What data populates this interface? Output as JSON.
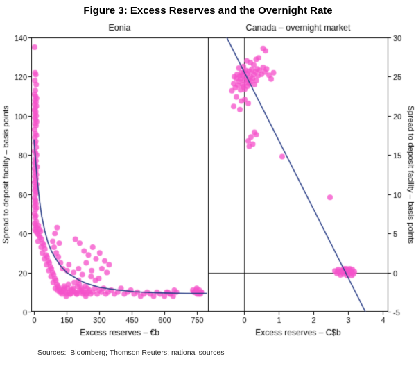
{
  "figure": {
    "title": "Figure 3: Excess Reserves and the Overnight Rate",
    "sources": "Sources:  Bloomberg; Thomson Reuters; national sources"
  },
  "colors": {
    "dot": "#f553cb",
    "line": "#2b3f87",
    "frame": "#000000",
    "text": "#000000"
  },
  "chart_data": [
    {
      "type": "scatter",
      "title": "Eonia",
      "xlabel": "Excess reserves – €b",
      "ylabel": "Spread to deposit facility – basis points",
      "ylabel_side": "left",
      "xlim": [
        -13,
        800
      ],
      "ylim": [
        0,
        140
      ],
      "xticks": [
        0,
        150,
        300,
        450,
        600,
        750
      ],
      "yticks": [
        0,
        20,
        40,
        60,
        80,
        100,
        120,
        140
      ],
      "points": [
        [
          3,
          135
        ],
        [
          5,
          122
        ],
        [
          8,
          121
        ],
        [
          4,
          118
        ],
        [
          10,
          116
        ],
        [
          6,
          113
        ],
        [
          3,
          111
        ],
        [
          7,
          110
        ],
        [
          12,
          109
        ],
        [
          5,
          108
        ],
        [
          9,
          107
        ],
        [
          4,
          106
        ],
        [
          11,
          105
        ],
        [
          6,
          104
        ],
        [
          3,
          103
        ],
        [
          8,
          102
        ],
        [
          5,
          101
        ],
        [
          10,
          100
        ],
        [
          4,
          99
        ],
        [
          7,
          98
        ],
        [
          12,
          97
        ],
        [
          5,
          96
        ],
        [
          9,
          95
        ],
        [
          3,
          93
        ],
        [
          6,
          91
        ],
        [
          11,
          90
        ],
        [
          4,
          89
        ],
        [
          8,
          87
        ],
        [
          5,
          86
        ],
        [
          10,
          84
        ],
        [
          3,
          82
        ],
        [
          7,
          81
        ],
        [
          12,
          80
        ],
        [
          5,
          78
        ],
        [
          9,
          77
        ],
        [
          4,
          76
        ],
        [
          6,
          75
        ],
        [
          14,
          74
        ],
        [
          3,
          73
        ],
        [
          8,
          72
        ],
        [
          5,
          71
        ],
        [
          11,
          70
        ],
        [
          4,
          69
        ],
        [
          9,
          68
        ],
        [
          6,
          67
        ],
        [
          3,
          66
        ],
        [
          12,
          65
        ],
        [
          5,
          64
        ],
        [
          8,
          63
        ],
        [
          4,
          62
        ],
        [
          10,
          61
        ],
        [
          6,
          60
        ],
        [
          3,
          58
        ],
        [
          7,
          57
        ],
        [
          5,
          56
        ],
        [
          9,
          55
        ],
        [
          4,
          54
        ],
        [
          11,
          53
        ],
        [
          6,
          52
        ],
        [
          3,
          50
        ],
        [
          8,
          49
        ],
        [
          5,
          48
        ],
        [
          10,
          46
        ],
        [
          4,
          45
        ],
        [
          7,
          44
        ],
        [
          12,
          43
        ],
        [
          5,
          42
        ],
        [
          9,
          41
        ],
        [
          15,
          40
        ],
        [
          20,
          44
        ],
        [
          25,
          42
        ],
        [
          30,
          41
        ],
        [
          22,
          39
        ],
        [
          28,
          38
        ],
        [
          35,
          37
        ],
        [
          18,
          36
        ],
        [
          40,
          35
        ],
        [
          45,
          34
        ],
        [
          33,
          33
        ],
        [
          50,
          32
        ],
        [
          38,
          30
        ],
        [
          55,
          29
        ],
        [
          60,
          28
        ],
        [
          48,
          27
        ],
        [
          65,
          26
        ],
        [
          70,
          25
        ],
        [
          58,
          24
        ],
        [
          75,
          23
        ],
        [
          80,
          22
        ],
        [
          68,
          21
        ],
        [
          85,
          20
        ],
        [
          90,
          19
        ],
        [
          78,
          18
        ],
        [
          95,
          17
        ],
        [
          100,
          16
        ],
        [
          88,
          15
        ],
        [
          105,
          14
        ],
        [
          110,
          13
        ],
        [
          98,
          12
        ],
        [
          115,
          12
        ],
        [
          120,
          11
        ],
        [
          108,
          11
        ],
        [
          125,
          10
        ],
        [
          130,
          10
        ],
        [
          118,
          10
        ],
        [
          135,
          11
        ],
        [
          140,
          12
        ],
        [
          128,
          9
        ],
        [
          145,
          10
        ],
        [
          150,
          9
        ],
        [
          138,
          13
        ],
        [
          155,
          12
        ],
        [
          160,
          10
        ],
        [
          148,
          8
        ],
        [
          165,
          9
        ],
        [
          170,
          11
        ],
        [
          158,
          14
        ],
        [
          175,
          10
        ],
        [
          180,
          12
        ],
        [
          168,
          9
        ],
        [
          185,
          15
        ],
        [
          190,
          10
        ],
        [
          178,
          11
        ],
        [
          195,
          9
        ],
        [
          200,
          13
        ],
        [
          188,
          10
        ],
        [
          205,
          16
        ],
        [
          210,
          11
        ],
        [
          198,
          9
        ],
        [
          215,
          10
        ],
        [
          220,
          12
        ],
        [
          208,
          14
        ],
        [
          225,
          9
        ],
        [
          230,
          10
        ],
        [
          218,
          11
        ],
        [
          235,
          13
        ],
        [
          240,
          9
        ],
        [
          228,
          10
        ],
        [
          245,
          12
        ],
        [
          250,
          10
        ],
        [
          238,
          8
        ],
        [
          255,
          11
        ],
        [
          260,
          9
        ],
        [
          270,
          10
        ],
        [
          280,
          12
        ],
        [
          290,
          9
        ],
        [
          300,
          11
        ],
        [
          310,
          10
        ],
        [
          320,
          12
        ],
        [
          330,
          9
        ],
        [
          340,
          10
        ],
        [
          190,
          37
        ],
        [
          210,
          35
        ],
        [
          230,
          31
        ],
        [
          250,
          29
        ],
        [
          270,
          33
        ],
        [
          285,
          27
        ],
        [
          302,
          30
        ],
        [
          160,
          24
        ],
        [
          205,
          22
        ],
        [
          240,
          25
        ],
        [
          265,
          21
        ],
        [
          312,
          22
        ],
        [
          325,
          26
        ],
        [
          335,
          20
        ],
        [
          345,
          24
        ],
        [
          298,
          17
        ],
        [
          282,
          16
        ],
        [
          262,
          18
        ],
        [
          222,
          19
        ],
        [
          182,
          20
        ],
        [
          152,
          21
        ],
        [
          132,
          22
        ],
        [
          122,
          25
        ],
        [
          112,
          28
        ],
        [
          102,
          30
        ],
        [
          92,
          33
        ],
        [
          86,
          36
        ],
        [
          96,
          40
        ],
        [
          106,
          43
        ],
        [
          116,
          35
        ],
        [
          355,
          11
        ],
        [
          370,
          9
        ],
        [
          385,
          10
        ],
        [
          400,
          12
        ],
        [
          415,
          9
        ],
        [
          430,
          10
        ],
        [
          445,
          11
        ],
        [
          460,
          9
        ],
        [
          475,
          10
        ],
        [
          490,
          8
        ],
        [
          505,
          9
        ],
        [
          520,
          10
        ],
        [
          535,
          9
        ],
        [
          550,
          8
        ],
        [
          565,
          10
        ],
        [
          580,
          9
        ],
        [
          600,
          8
        ],
        [
          615,
          10
        ],
        [
          630,
          9
        ],
        [
          645,
          11
        ],
        [
          655,
          10
        ],
        [
          640,
          8
        ],
        [
          625,
          9
        ],
        [
          610,
          10
        ],
        [
          730,
          11
        ],
        [
          735,
          10
        ],
        [
          740,
          10
        ],
        [
          745,
          11
        ],
        [
          748,
          12
        ],
        [
          750,
          9
        ],
        [
          755,
          10
        ],
        [
          758,
          9
        ],
        [
          760,
          11
        ],
        [
          765,
          9
        ],
        [
          768,
          10
        ],
        [
          770,
          10
        ]
      ],
      "trend": [
        [
          0,
          88
        ],
        [
          8,
          76
        ],
        [
          16,
          66
        ],
        [
          25,
          57
        ],
        [
          35,
          49
        ],
        [
          50,
          41
        ],
        [
          65,
          35
        ],
        [
          80,
          31
        ],
        [
          100,
          27
        ],
        [
          125,
          23
        ],
        [
          150,
          20
        ],
        [
          180,
          18
        ],
        [
          210,
          16
        ],
        [
          240,
          14.5
        ],
        [
          270,
          13.5
        ],
        [
          300,
          12.5
        ],
        [
          340,
          11.8
        ],
        [
          380,
          11.2
        ],
        [
          420,
          10.7
        ],
        [
          460,
          10.3
        ],
        [
          500,
          10
        ],
        [
          550,
          9.8
        ],
        [
          600,
          9.6
        ],
        [
          650,
          9.5
        ],
        [
          700,
          9.4
        ],
        [
          750,
          9.4
        ],
        [
          795,
          9.4
        ]
      ]
    },
    {
      "type": "scatter",
      "title": "Canada – overnight market",
      "xlabel": "Excess reserves – C$b",
      "ylabel": "Spread to deposit facility – basis points",
      "ylabel_side": "right",
      "xlim": [
        -1.04,
        4.16
      ],
      "ylim": [
        -5,
        30
      ],
      "xticks": [
        0,
        1,
        2,
        3,
        4
      ],
      "yticks": [
        -5,
        0,
        5,
        10,
        15,
        20,
        25,
        30
      ],
      "reflines": {
        "x": 0,
        "y": 0
      },
      "points": [
        [
          -0.35,
          23.2
        ],
        [
          -0.3,
          24.1
        ],
        [
          -0.28,
          25.0
        ],
        [
          -0.25,
          23.6
        ],
        [
          -0.22,
          24.8
        ],
        [
          -0.2,
          25.3
        ],
        [
          -0.18,
          23.9
        ],
        [
          -0.15,
          24.4
        ],
        [
          -0.12,
          25.1
        ],
        [
          -0.1,
          23.3
        ],
        [
          -0.1,
          24.7
        ],
        [
          -0.08,
          25.5
        ],
        [
          -0.05,
          24.0
        ],
        [
          -0.05,
          25.2
        ],
        [
          -0.02,
          23.7
        ],
        [
          0,
          24.5
        ],
        [
          0,
          25.6
        ],
        [
          0.02,
          23.4
        ],
        [
          0.05,
          24.9
        ],
        [
          0.05,
          25.8
        ],
        [
          0.08,
          24.2
        ],
        [
          0.1,
          25.4
        ],
        [
          0.1,
          23.8
        ],
        [
          0.12,
          24.6
        ],
        [
          0.15,
          25.7
        ],
        [
          0.15,
          24.1
        ],
        [
          0.18,
          25.0
        ],
        [
          0.2,
          24.4
        ],
        [
          0.22,
          25.9
        ],
        [
          0.25,
          24.8
        ],
        [
          0.28,
          25.3
        ],
        [
          0.3,
          24.0
        ],
        [
          0.32,
          25.6
        ],
        [
          0.35,
          24.5
        ],
        [
          0.38,
          26.0
        ],
        [
          0.4,
          25.1
        ],
        [
          0.45,
          25.8
        ],
        [
          0.5,
          25.3
        ],
        [
          0.55,
          26.2
        ],
        [
          0.6,
          25.6
        ],
        [
          0.65,
          26.0
        ],
        [
          0.72,
          25.2
        ],
        [
          0.78,
          24.7
        ],
        [
          0.85,
          25.5
        ],
        [
          0.55,
          28.6
        ],
        [
          0.62,
          28.3
        ],
        [
          0.35,
          27.2
        ],
        [
          0.18,
          26.8
        ],
        [
          -0.02,
          26.3
        ],
        [
          0.08,
          27.0
        ],
        [
          -0.15,
          26.1
        ],
        [
          0.28,
          26.5
        ],
        [
          0.42,
          27.4
        ],
        [
          -0.22,
          22.4
        ],
        [
          -0.08,
          21.9
        ],
        [
          0.02,
          22.1
        ],
        [
          0.12,
          21.6
        ],
        [
          -0.3,
          21.2
        ],
        [
          -0.12,
          20.8
        ],
        [
          0.3,
          17.9
        ],
        [
          0.2,
          17.3
        ],
        [
          0.12,
          16.8
        ],
        [
          0.25,
          16.4
        ],
        [
          0.35,
          17.6
        ],
        [
          0.15,
          16.1
        ],
        [
          1.1,
          14.8
        ],
        [
          2.48,
          9.6
        ],
        [
          2.62,
          0.2
        ],
        [
          2.68,
          -0.1
        ],
        [
          2.72,
          0.4
        ],
        [
          2.75,
          0.0
        ],
        [
          2.78,
          -0.3
        ],
        [
          2.82,
          0.3
        ],
        [
          2.85,
          0.1
        ],
        [
          2.88,
          -0.2
        ],
        [
          2.9,
          0.4
        ],
        [
          2.92,
          0.0
        ],
        [
          2.95,
          0.2
        ],
        [
          2.98,
          -0.4
        ],
        [
          3.0,
          0.1
        ],
        [
          3.02,
          0.3
        ],
        [
          3.05,
          -0.1
        ],
        [
          3.08,
          0.2
        ],
        [
          3.1,
          0.0
        ],
        [
          3.12,
          0.4
        ],
        [
          3.15,
          -0.2
        ],
        [
          3.18,
          0.1
        ],
        [
          3.05,
          0.5
        ],
        [
          2.95,
          0.5
        ],
        [
          2.88,
          0.5
        ],
        [
          3.1,
          -0.4
        ],
        [
          2.7,
          0.2
        ]
      ],
      "line": {
        "x1": -0.5,
        "y1": 30,
        "x2": 3.5,
        "y2": -5
      }
    }
  ]
}
